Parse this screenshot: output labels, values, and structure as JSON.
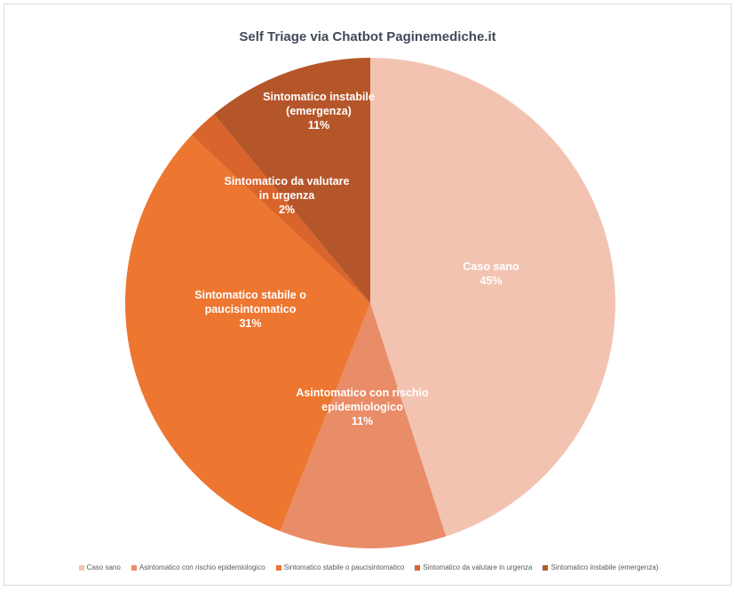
{
  "chart_data": {
    "type": "pie",
    "title": "Self Triage via Chatbot Paginemediche.it",
    "slices": [
      {
        "name": "Caso sano",
        "label_lines": [
          "Caso sano"
        ],
        "value": 45,
        "pct_label": "45%",
        "color": "#f3c3b2"
      },
      {
        "name": "Asintomatico con rischio epidemiologico",
        "label_lines": [
          "Asintomatico con rischio",
          "epidemiologico"
        ],
        "value": 11,
        "pct_label": "11%",
        "color": "#e98c68"
      },
      {
        "name": "Sintomatico stabile o paucisintomatico",
        "label_lines": [
          "Sintomatico stabile o",
          "paucisintomatico"
        ],
        "value": 31,
        "pct_label": "31%",
        "color": "#ed7630"
      },
      {
        "name": "Sintomatico da valutare in urgenza",
        "label_lines": [
          "Sintomatico da valutare",
          "in urgenza"
        ],
        "value": 2,
        "pct_label": "2%",
        "color": "#d9642c"
      },
      {
        "name": "Sintomatico instabile (emergenza)",
        "label_lines": [
          "Sintomatico instabile",
          "(emergenza)"
        ],
        "value": 11,
        "pct_label": "11%",
        "color": "#b5562a"
      }
    ],
    "legend_position": "bottom"
  }
}
